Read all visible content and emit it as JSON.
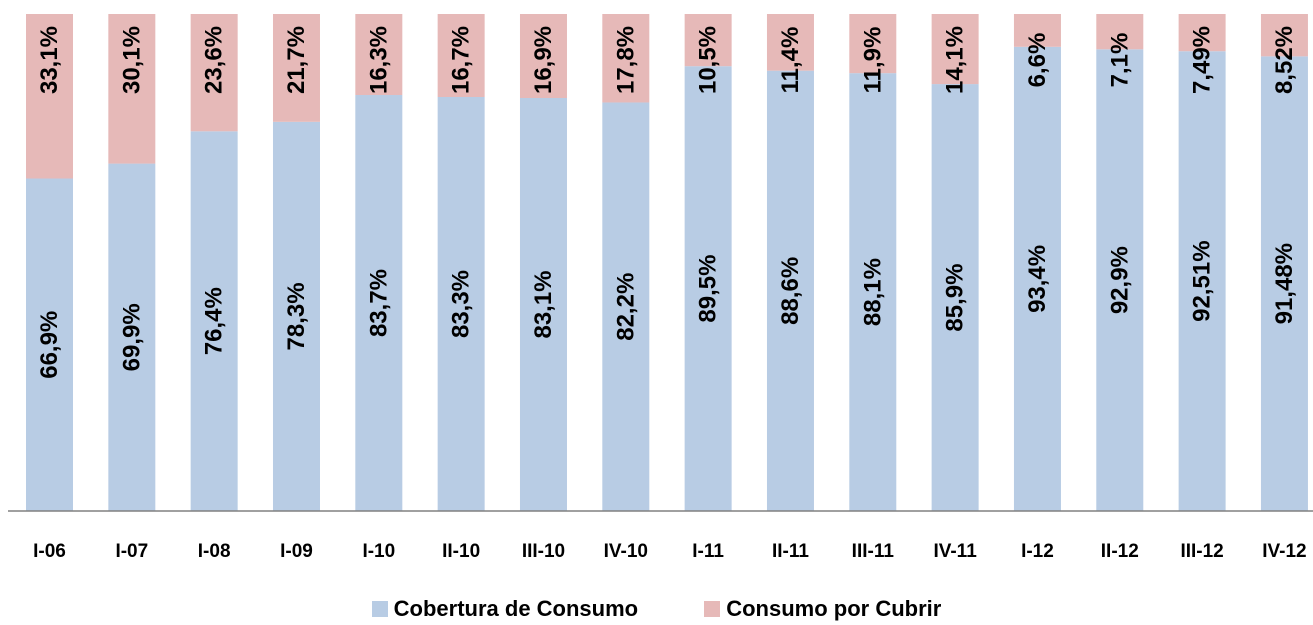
{
  "chart_data": {
    "type": "bar",
    "stacked": true,
    "percent_stacked": true,
    "title": "",
    "xlabel": "",
    "ylabel": "",
    "ylim": [
      0,
      100
    ],
    "grid": false,
    "legend_position": "bottom",
    "categories": [
      "I-06",
      "I-07",
      "I-08",
      "I-09",
      "I-10",
      "II-10",
      "III-10",
      "IV-10",
      "I-11",
      "II-11",
      "III-11",
      "IV-11",
      "I-12",
      "II-12",
      "III-12",
      "IV-12"
    ],
    "series": [
      {
        "name": "Cobertura de Consumo",
        "color": "#b8cce4",
        "values": [
          66.9,
          69.9,
          76.4,
          78.3,
          83.7,
          83.3,
          83.1,
          82.2,
          89.5,
          88.6,
          88.1,
          85.9,
          93.4,
          92.9,
          92.51,
          91.48
        ],
        "labels": [
          "66,9%",
          "69,9%",
          "76,4%",
          "78,3%",
          "83,7%",
          "83,3%",
          "83,1%",
          "82,2%",
          "89,5%",
          "88,6%",
          "88,1%",
          "85,9%",
          "93,4%",
          "92,9%",
          "92,51%",
          "91,48%"
        ]
      },
      {
        "name": "Consumo por  Cubrir",
        "color": "#e6b9b8",
        "values": [
          33.1,
          30.1,
          23.6,
          21.7,
          16.3,
          16.7,
          16.9,
          17.8,
          10.5,
          11.4,
          11.9,
          14.1,
          6.6,
          7.1,
          7.49,
          8.52
        ],
        "labels": [
          "33,1%",
          "30,1%",
          "23,6%",
          "21,7%",
          "16,3%",
          "16,7%",
          "16,9%",
          "17,8%",
          "10,5%",
          "11,4%",
          "11,9%",
          "14,1%",
          "6,6%",
          "7,1%",
          "7,49%",
          "8,52%"
        ]
      }
    ]
  },
  "legend": {
    "items": [
      {
        "label": "Cobertura de Consumo",
        "color": "#b8cce4"
      },
      {
        "label": "Consumo por  Cubrir",
        "color": "#e6b9b8"
      }
    ]
  }
}
